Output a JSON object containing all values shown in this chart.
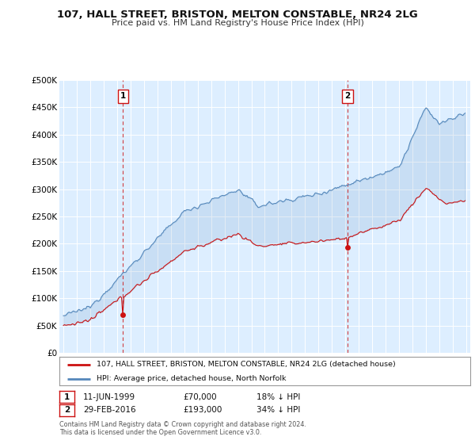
{
  "title": "107, HALL STREET, BRISTON, MELTON CONSTABLE, NR24 2LG",
  "subtitle": "Price paid vs. HM Land Registry's House Price Index (HPI)",
  "ylim": [
    0,
    500000
  ],
  "yticks": [
    0,
    50000,
    100000,
    150000,
    200000,
    250000,
    300000,
    350000,
    400000,
    450000,
    500000
  ],
  "ytick_labels": [
    "£0",
    "£50K",
    "£100K",
    "£150K",
    "£200K",
    "£250K",
    "£300K",
    "£350K",
    "£400K",
    "£450K",
    "£500K"
  ],
  "xlim_start": 1994.7,
  "xlim_end": 2025.3,
  "background_color": "#ffffff",
  "plot_bg_color": "#ddeeff",
  "grid_color": "#ffffff",
  "hpi_color": "#5588bb",
  "price_color": "#cc1111",
  "sale1_date": 1999.44,
  "sale1_price": 70000,
  "sale1_label": "1",
  "sale1_text": "11-JUN-1999",
  "sale1_amount": "£70,000",
  "sale1_pct": "18% ↓ HPI",
  "sale2_date": 2016.16,
  "sale2_price": 193000,
  "sale2_label": "2",
  "sale2_text": "29-FEB-2016",
  "sale2_amount": "£193,000",
  "sale2_pct": "34% ↓ HPI",
  "legend_property": "107, HALL STREET, BRISTON, MELTON CONSTABLE, NR24 2LG (detached house)",
  "legend_hpi": "HPI: Average price, detached house, North Norfolk",
  "footer": "Contains HM Land Registry data © Crown copyright and database right 2024.\nThis data is licensed under the Open Government Licence v3.0."
}
